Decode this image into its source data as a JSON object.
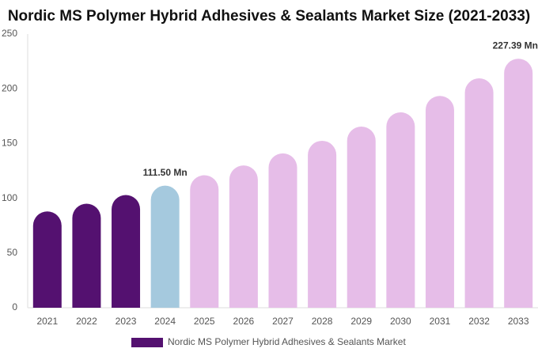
{
  "chart_data": {
    "type": "bar",
    "title": "Nordic MS Polymer Hybrid Adhesives & Sealants Market Size (2021-2033)",
    "categories": [
      "2021",
      "2022",
      "2023",
      "2024",
      "2025",
      "2026",
      "2027",
      "2028",
      "2029",
      "2030",
      "2031",
      "2032",
      "2033"
    ],
    "series": [
      {
        "name": "Nordic MS Polymer Hybrid Adhesives & Sealants Market",
        "color": "#541170",
        "values": [
          88,
          95,
          103,
          111.5,
          121,
          130,
          141,
          152.5,
          165.5,
          178.5,
          193.5,
          209.5,
          227.39
        ],
        "value_labels": [
          null,
          null,
          null,
          "111.50 Mn",
          null,
          null,
          null,
          null,
          null,
          null,
          null,
          null,
          "227.39 Mn"
        ],
        "colors": [
          "#541170",
          "#541170",
          "#541170",
          "#a5c9de",
          "#e6bde8",
          "#e6bde8",
          "#e6bde8",
          "#e6bde8",
          "#e6bde8",
          "#e6bde8",
          "#e6bde8",
          "#e6bde8",
          "#e6bde8"
        ]
      }
    ],
    "ylim": [
      0,
      250
    ],
    "yticks": [
      0,
      50,
      100,
      150,
      200,
      250
    ],
    "grid": false
  }
}
